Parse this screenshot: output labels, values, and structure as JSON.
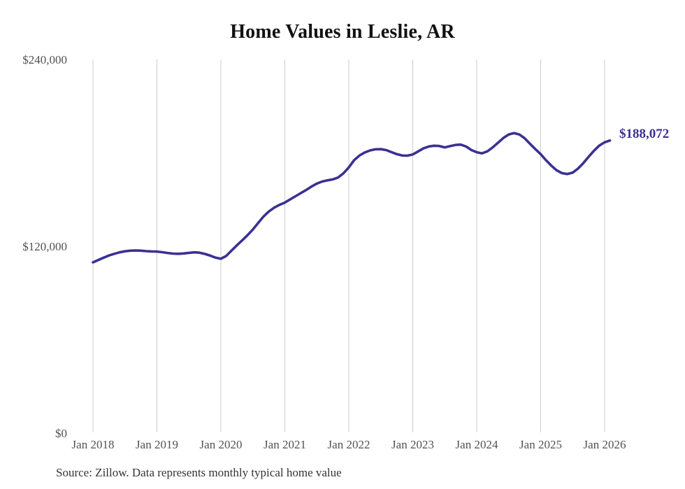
{
  "page": {
    "title": "Home Values in Leslie, AR"
  },
  "chart_data": {
    "type": "line",
    "title": "Home Values in Leslie, AR",
    "xlabel": "",
    "ylabel": "",
    "ylim": [
      0,
      240000
    ],
    "grid": "vertical-only",
    "legend": "none",
    "x_start": "Jan 2018",
    "x_end": "Feb 2026",
    "x_interval": "monthly",
    "xticks": [
      "Jan 2018",
      "Jan 2019",
      "Jan 2020",
      "Jan 2021",
      "Jan 2022",
      "Jan 2023",
      "Jan 2024",
      "Jan 2025",
      "Jan 2026"
    ],
    "yticks": [
      {
        "value": 240000,
        "label": "$240,000"
      },
      {
        "value": 120000,
        "label": "$120,000"
      },
      {
        "value": 0,
        "label": "$0"
      }
    ],
    "series": [
      {
        "name": "Monthly typical home value",
        "monthly_values": [
          109900,
          111400,
          112900,
          114300,
          115400,
          116300,
          117000,
          117400,
          117500,
          117400,
          117100,
          116900,
          116800,
          116400,
          115900,
          115500,
          115400,
          115600,
          116000,
          116300,
          116100,
          115300,
          114200,
          112900,
          112200,
          114000,
          117500,
          120800,
          124000,
          127300,
          131000,
          135200,
          139300,
          142500,
          145000,
          146800,
          148200,
          150300,
          152300,
          154300,
          156300,
          158500,
          160400,
          161700,
          162500,
          163100,
          164300,
          167000,
          170800,
          175400,
          178400,
          180400,
          181700,
          182400,
          182500,
          181900,
          180600,
          179300,
          178400,
          178300,
          179100,
          181000,
          183000,
          184200,
          184700,
          184500,
          183600,
          184400,
          185200,
          185400,
          184200,
          181900,
          180500,
          179800,
          181100,
          183600,
          186600,
          189600,
          191900,
          192800,
          191900,
          189500,
          185900,
          182500,
          179300,
          175400,
          171900,
          168900,
          167100,
          166500,
          167400,
          170000,
          173500,
          177600,
          181500,
          184800,
          186900,
          188072
        ]
      }
    ],
    "end_label": "$188,072",
    "last_value": 188072,
    "colors": {
      "line": "#3a3191",
      "end_label": "#3a3191",
      "gridline": "#cccccc",
      "tick_text": "#525252",
      "title_text": "#111111",
      "source_text": "#333333"
    }
  },
  "source": {
    "text": "Source: Zillow. Data represents monthly typical home value"
  }
}
